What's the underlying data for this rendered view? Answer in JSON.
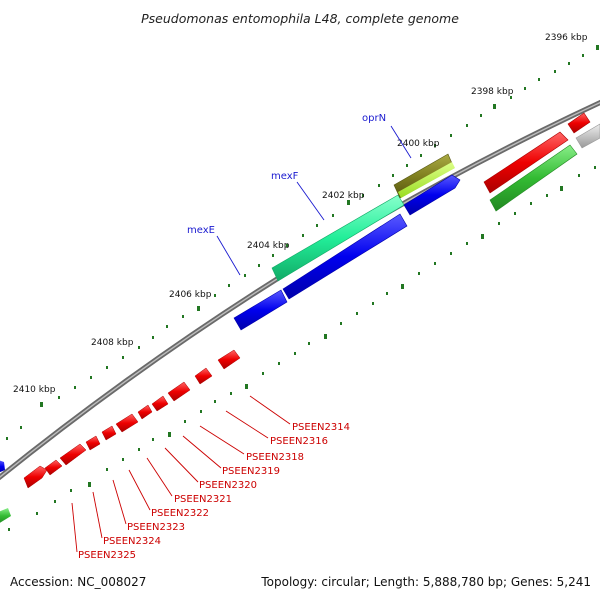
{
  "title": "Pseudomonas entomophila L48, complete genome",
  "footer": {
    "accession": "Accession: NC_008027",
    "summary": "Topology: circular; Length: 5,888,780 bp; Genes: 5,241"
  },
  "ticks": [
    "2396 kbp",
    "2398 kbp",
    "2400 kbp",
    "2402 kbp",
    "2404 kbp",
    "2406 kbp",
    "2408 kbp",
    "2410 kbp"
  ],
  "genes_named": [
    "oprN",
    "mexF",
    "mexE"
  ],
  "genes_locus": [
    "PSEEN2314",
    "PSEEN2316",
    "PSEEN2318",
    "PSEEN2319",
    "PSEEN2320",
    "PSEEN2321",
    "PSEEN2322",
    "PSEEN2323",
    "PSEEN2324",
    "PSEEN2325"
  ],
  "colors": {
    "backbone": "#777777",
    "forward_cds": "#0000ee",
    "reverse_cds": "#ee0000",
    "transporter": "#22ee99",
    "transporter_alt": "#808020",
    "other": "#aaaaaa",
    "green_feature": "#33bb33",
    "lime_feature": "#aaee33",
    "tick": "#227722"
  }
}
